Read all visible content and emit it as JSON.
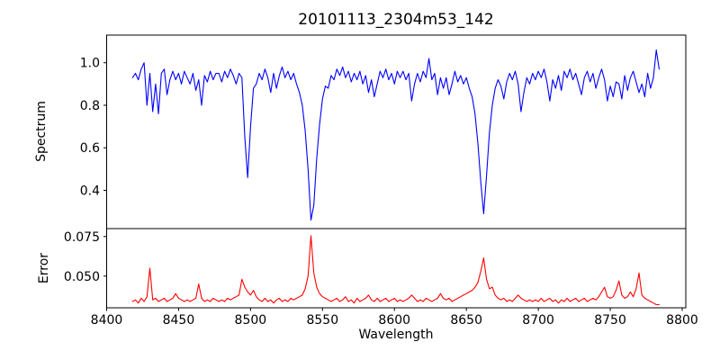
{
  "chart_data": {
    "type": "line",
    "title": "20101113_2304m53_142",
    "xlabel": "Wavelength",
    "grid": false,
    "legend": null,
    "xlim": [
      8400,
      8802.5
    ],
    "xticks": [
      8400,
      8450,
      8500,
      8550,
      8600,
      8650,
      8700,
      8750,
      8800
    ],
    "x_start": 8418,
    "x_step": 2,
    "panels": [
      {
        "name": "spectrum",
        "ylabel": "Spectrum",
        "color": "#0000ff",
        "ylim": [
          0.22,
          1.13
        ],
        "yticks": [
          1.0,
          0.8,
          0.6,
          0.4
        ],
        "ytick_labels": [
          "1.0",
          "0.8",
          "0.6",
          "0.4"
        ],
        "notable_features": "Ca II triplet absorption lines near 8498, 8542 and 8662 with depths ~0.45, ~0.26 and ~0.29; noisy continuum around 0.93",
        "values": [
          0.93,
          0.95,
          0.92,
          0.97,
          1.0,
          0.8,
          0.95,
          0.77,
          0.9,
          0.76,
          0.95,
          0.97,
          0.85,
          0.92,
          0.96,
          0.92,
          0.95,
          0.9,
          0.96,
          0.93,
          0.9,
          0.95,
          0.87,
          0.92,
          0.8,
          0.94,
          0.91,
          0.96,
          0.92,
          0.95,
          0.95,
          0.91,
          0.96,
          0.93,
          0.97,
          0.94,
          0.9,
          0.95,
          0.93,
          0.65,
          0.46,
          0.7,
          0.88,
          0.9,
          0.95,
          0.92,
          0.97,
          0.93,
          0.86,
          0.95,
          0.88,
          0.94,
          0.98,
          0.93,
          0.96,
          0.92,
          0.95,
          0.9,
          0.86,
          0.8,
          0.68,
          0.5,
          0.26,
          0.33,
          0.55,
          0.71,
          0.83,
          0.89,
          0.88,
          0.94,
          0.92,
          0.97,
          0.94,
          0.98,
          0.93,
          0.96,
          0.91,
          0.95,
          0.92,
          0.96,
          0.9,
          0.94,
          0.86,
          0.92,
          0.84,
          0.9,
          0.96,
          0.93,
          0.97,
          0.92,
          0.95,
          0.9,
          0.96,
          0.93,
          0.96,
          0.92,
          0.95,
          0.82,
          0.9,
          0.95,
          0.91,
          0.96,
          0.93,
          1.02,
          0.92,
          0.95,
          0.85,
          0.93,
          0.88,
          0.93,
          0.85,
          0.9,
          0.96,
          0.91,
          0.94,
          0.9,
          0.93,
          0.88,
          0.84,
          0.76,
          0.62,
          0.44,
          0.29,
          0.47,
          0.67,
          0.8,
          0.88,
          0.92,
          0.89,
          0.83,
          0.91,
          0.95,
          0.92,
          0.96,
          0.9,
          0.77,
          0.86,
          0.93,
          0.9,
          0.95,
          0.92,
          0.96,
          0.93,
          0.97,
          0.91,
          0.82,
          0.92,
          0.88,
          0.94,
          0.87,
          0.96,
          0.93,
          0.97,
          0.92,
          0.95,
          0.9,
          0.85,
          0.93,
          0.96,
          0.91,
          0.95,
          0.88,
          0.93,
          0.97,
          0.92,
          0.82,
          0.89,
          0.84,
          0.91,
          0.9,
          0.83,
          0.94,
          0.87,
          0.93,
          0.96,
          0.91,
          0.86,
          0.9,
          0.84,
          0.95,
          0.88,
          0.93,
          1.06,
          0.97
        ]
      },
      {
        "name": "error",
        "ylabel": "Error",
        "color": "#ff0000",
        "ylim": [
          0.03,
          0.08
        ],
        "yticks": [
          0.075,
          0.05
        ],
        "ytick_labels": [
          "0.075",
          "0.050"
        ],
        "notable_features": "baseline ~0.035 with spikes at 8430, 8464, 8494, 8542 (max ~0.0755), 8662 (~0.0615) and 8745-8770",
        "values": [
          0.034,
          0.035,
          0.033,
          0.036,
          0.034,
          0.037,
          0.055,
          0.035,
          0.036,
          0.034,
          0.035,
          0.036,
          0.034,
          0.035,
          0.036,
          0.039,
          0.036,
          0.035,
          0.034,
          0.035,
          0.034,
          0.035,
          0.036,
          0.045,
          0.036,
          0.034,
          0.035,
          0.034,
          0.036,
          0.035,
          0.034,
          0.035,
          0.034,
          0.036,
          0.035,
          0.036,
          0.037,
          0.038,
          0.048,
          0.043,
          0.04,
          0.038,
          0.041,
          0.037,
          0.035,
          0.034,
          0.036,
          0.034,
          0.035,
          0.033,
          0.035,
          0.036,
          0.034,
          0.035,
          0.034,
          0.036,
          0.035,
          0.036,
          0.037,
          0.038,
          0.042,
          0.05,
          0.0755,
          0.052,
          0.043,
          0.039,
          0.037,
          0.036,
          0.035,
          0.034,
          0.035,
          0.036,
          0.034,
          0.035,
          0.037,
          0.034,
          0.035,
          0.033,
          0.036,
          0.034,
          0.035,
          0.036,
          0.038,
          0.035,
          0.034,
          0.036,
          0.034,
          0.035,
          0.036,
          0.034,
          0.035,
          0.036,
          0.034,
          0.035,
          0.034,
          0.035,
          0.036,
          0.038,
          0.036,
          0.034,
          0.035,
          0.034,
          0.036,
          0.035,
          0.034,
          0.035,
          0.036,
          0.039,
          0.036,
          0.035,
          0.036,
          0.034,
          0.035,
          0.036,
          0.037,
          0.038,
          0.039,
          0.04,
          0.041,
          0.043,
          0.046,
          0.053,
          0.0615,
          0.048,
          0.042,
          0.043,
          0.038,
          0.036,
          0.035,
          0.036,
          0.034,
          0.035,
          0.034,
          0.036,
          0.038,
          0.036,
          0.035,
          0.034,
          0.035,
          0.034,
          0.035,
          0.034,
          0.036,
          0.034,
          0.035,
          0.036,
          0.034,
          0.035,
          0.033,
          0.035,
          0.034,
          0.036,
          0.034,
          0.035,
          0.036,
          0.034,
          0.035,
          0.036,
          0.034,
          0.035,
          0.036,
          0.035,
          0.037,
          0.04,
          0.043,
          0.037,
          0.036,
          0.037,
          0.041,
          0.047,
          0.038,
          0.036,
          0.037,
          0.04,
          0.037,
          0.042,
          0.052,
          0.038,
          0.036,
          0.035,
          0.034,
          0.033,
          0.032,
          0.032
        ]
      }
    ]
  }
}
